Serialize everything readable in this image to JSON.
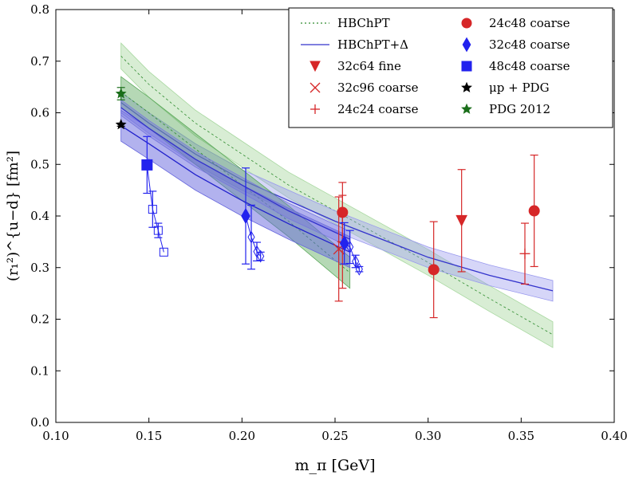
{
  "chart_data": {
    "type": "scatter",
    "xlabel": "m_π [GeV]",
    "ylabel": "(r₁²)^{u−d} [fm²]",
    "xlim": [
      0.1,
      0.4
    ],
    "ylim": [
      0.0,
      0.8
    ],
    "xticks": [
      "0.10",
      "0.15",
      "0.20",
      "0.25",
      "0.30",
      "0.35",
      "0.40"
    ],
    "yticks": [
      "0.0",
      "0.1",
      "0.2",
      "0.3",
      "0.4",
      "0.5",
      "0.6",
      "0.7",
      "0.8"
    ],
    "legend_position": "top-right",
    "bands": [
      {
        "name": "HBChPT",
        "color": "#2e8b2e",
        "dash": true,
        "x": [
          0.135,
          0.15,
          0.175,
          0.2,
          0.225,
          0.25,
          0.275,
          0.3,
          0.333,
          0.367
        ],
        "y": [
          0.71,
          0.655,
          0.58,
          0.52,
          0.46,
          0.41,
          0.36,
          0.31,
          0.24,
          0.17
        ],
        "err": 0.025,
        "fill": "#a8d8a0",
        "opacity": 0.45
      },
      {
        "name": "HBChPT+Δ",
        "color": "#3333cc",
        "dash": false,
        "x": [
          0.135,
          0.15,
          0.175,
          0.2,
          0.225,
          0.25,
          0.275,
          0.3,
          0.333,
          0.367
        ],
        "y": [
          0.62,
          0.58,
          0.52,
          0.47,
          0.43,
          0.39,
          0.355,
          0.32,
          0.285,
          0.255
        ],
        "err": 0.02,
        "fill": "#9999ee",
        "opacity": 0.4
      },
      {
        "name": "fit-short-green",
        "color": "#2e8b2e",
        "dash": true,
        "x": [
          0.135,
          0.15,
          0.175,
          0.2,
          0.225,
          0.258
        ],
        "y": [
          0.64,
          0.6,
          0.53,
          0.46,
          0.39,
          0.29
        ],
        "err": 0.03,
        "fill": "#5aa85a",
        "opacity": 0.45
      },
      {
        "name": "fit-short-blue",
        "color": "#2222cc",
        "dash": false,
        "x": [
          0.135,
          0.15,
          0.175,
          0.2,
          0.225,
          0.258
        ],
        "y": [
          0.575,
          0.54,
          0.48,
          0.43,
          0.385,
          0.33
        ],
        "err": 0.03,
        "fill": "#6666dd",
        "opacity": 0.5
      },
      {
        "name": "fit-short-blue-2",
        "color": "#3333cc",
        "dash": false,
        "x": [
          0.135,
          0.15,
          0.175,
          0.2,
          0.225,
          0.258
        ],
        "y": [
          0.61,
          0.57,
          0.51,
          0.46,
          0.41,
          0.355
        ],
        "err": 0.015,
        "fill": "#7777dd",
        "opacity": 0.4
      }
    ],
    "series": [
      {
        "name": "24c48 coarse",
        "marker": "circle",
        "color": "#d62728",
        "points": [
          [
            0.254,
            0.407,
            0.058
          ],
          [
            0.303,
            0.296,
            0.093
          ],
          [
            0.357,
            0.41,
            0.108
          ]
        ]
      },
      {
        "name": "32c64 fine",
        "marker": "triangle",
        "color": "#d62728",
        "points": [
          [
            0.318,
            0.391,
            0.099
          ]
        ]
      },
      {
        "name": "32c96 coarse",
        "marker": "x",
        "color": "#d62728",
        "points": [
          [
            0.252,
            0.336,
            0.101
          ]
        ]
      },
      {
        "name": "24c24 coarse",
        "marker": "plus",
        "color": "#d62728",
        "points": [
          [
            0.352,
            0.327,
            0.059
          ],
          [
            0.254,
            0.35,
            0.09
          ]
        ]
      },
      {
        "name": "48c48 coarse",
        "marker": "square",
        "color": "#2222ee",
        "points": [
          [
            0.149,
            0.499,
            0.055
          ]
        ],
        "open": [
          [
            0.152,
            0.413,
            0.035
          ],
          [
            0.155,
            0.372,
            0.014
          ],
          [
            0.158,
            0.33,
            0.0
          ]
        ]
      },
      {
        "name": "32c48 coarse",
        "marker": "diamond",
        "color": "#2222ee",
        "points": [
          [
            0.202,
            0.4,
            0.093
          ],
          [
            0.255,
            0.347,
            0.04
          ]
        ],
        "open": [
          [
            0.205,
            0.359,
            0.062
          ],
          [
            0.208,
            0.331,
            0.018
          ],
          [
            0.21,
            0.322,
            0.008
          ]
        ],
        "open2": [
          [
            0.258,
            0.34,
            0.032
          ],
          [
            0.261,
            0.312,
            0.012
          ],
          [
            0.263,
            0.297,
            0.005
          ]
        ]
      },
      {
        "name": "μp + PDG",
        "marker": "star",
        "color": "#000000",
        "points": [
          [
            0.135,
            0.577,
            0.003
          ]
        ]
      },
      {
        "name": "PDG 2012",
        "marker": "star",
        "color": "#1a6e1a",
        "points": [
          [
            0.135,
            0.637,
            0.012
          ]
        ]
      }
    ],
    "legend": [
      {
        "label": "HBChPT",
        "kind": "dotted",
        "color": "#2e8b2e"
      },
      {
        "label": "HBChPT+Δ",
        "kind": "line",
        "color": "#3333cc"
      },
      {
        "label": "32c64 fine",
        "kind": "triangle",
        "color": "#d62728"
      },
      {
        "label": "32c96 coarse",
        "kind": "x",
        "color": "#d62728"
      },
      {
        "label": "24c24 coarse",
        "kind": "plus",
        "color": "#d62728"
      },
      {
        "label": "24c48 coarse",
        "kind": "circle",
        "color": "#d62728"
      },
      {
        "label": "32c48 coarse",
        "kind": "diamond",
        "color": "#2222ee"
      },
      {
        "label": "48c48 coarse",
        "kind": "square",
        "color": "#2222ee"
      },
      {
        "label": "μp + PDG",
        "kind": "star",
        "color": "#000000"
      },
      {
        "label": "PDG 2012",
        "kind": "star",
        "color": "#1a6e1a"
      }
    ]
  }
}
